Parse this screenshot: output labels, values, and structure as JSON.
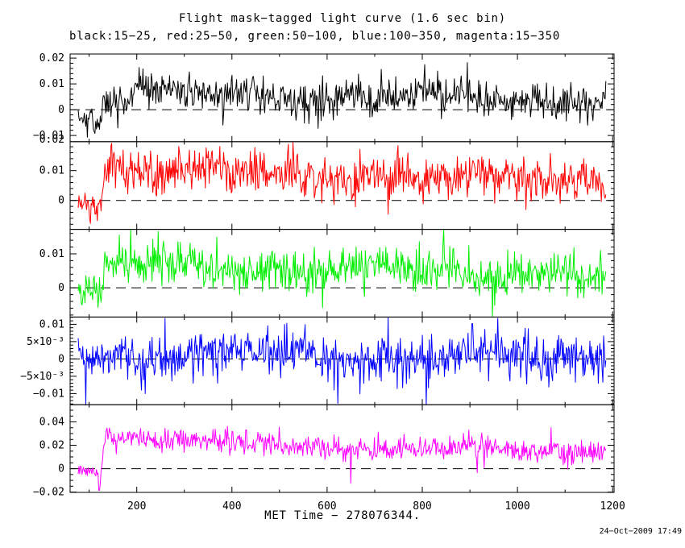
{
  "chart_data": {
    "type": "line",
    "title": "Flight mask−tagged light curve (1.6 sec bin)",
    "subtitle": "black:15−25, red:25−50, green:50−100, blue:100−350, magenta:15−350",
    "xlabel": "MET Time − 278076344.",
    "timestamp": "24−Oct−2009 17:49",
    "background": "#ffffff",
    "axis_color": "#000000",
    "legend_position": "subtitle-top-left",
    "grid": false,
    "x_axis": {
      "range": [
        60,
        1203
      ],
      "major_ticks": [
        200,
        400,
        600,
        800,
        1000,
        1200
      ],
      "tick_labels": [
        "200",
        "400",
        "600",
        "800",
        "1000",
        "1200"
      ],
      "minor_step": 100,
      "data_start": 77,
      "data_end": 1186,
      "bin_sec": 1.6
    },
    "panels": [
      {
        "name": "black",
        "band": "15−25",
        "color": "#000000",
        "y_range": [
          -0.0124,
          0.0216
        ],
        "y_ticks": [
          {
            "v": 0.02,
            "label": "0.02"
          },
          {
            "v": 0.01,
            "label": "0.01"
          },
          {
            "v": 0,
            "label": "0"
          },
          {
            "v": -0.01,
            "label": "−0.01"
          },
          {
            "v": -0.0116,
            "label": "0.02",
            "tick": false
          }
        ],
        "y_minor_step": 0.002,
        "zero_dashed_line": true,
        "trigger_t": 130,
        "sigma_pre": 0.0022,
        "sigma_post": 0.0034,
        "envelope": [
          [
            77,
            -0.001
          ],
          [
            100,
            -0.003
          ],
          [
            113,
            -0.006
          ],
          [
            124,
            -0.003
          ],
          [
            131,
            0.0045
          ],
          [
            180,
            0.0058
          ],
          [
            400,
            0.0054
          ],
          [
            700,
            0.005
          ],
          [
            1000,
            0.0046
          ],
          [
            1186,
            0.004
          ]
        ],
        "events": [
          [
            110,
            -0.0085
          ],
          [
            116,
            -0.0075
          ]
        ]
      },
      {
        "name": "red",
        "band": "25−50",
        "color": "#ff0000",
        "y_range": [
          -0.0097,
          0.0197
        ],
        "y_ticks": [
          {
            "v": 0.01,
            "label": "0.01"
          },
          {
            "v": 0,
            "label": "0"
          }
        ],
        "y_minor_step": 0.002,
        "zero_dashed_line": true,
        "trigger_t": 130,
        "sigma_pre": 0.0021,
        "sigma_post": 0.0036,
        "envelope": [
          [
            77,
            -0.0005
          ],
          [
            110,
            -0.0015
          ],
          [
            122,
            -0.002
          ],
          [
            129,
            0.001
          ],
          [
            137,
            0.0115
          ],
          [
            180,
            0.0108
          ],
          [
            350,
            0.0095
          ],
          [
            600,
            0.0085
          ],
          [
            850,
            0.0075
          ],
          [
            1100,
            0.0068
          ],
          [
            1186,
            0.0065
          ]
        ],
        "events": [
          [
            117,
            -0.0068
          ]
        ]
      },
      {
        "name": "green",
        "band": "50−100",
        "color": "#00ee00",
        "y_range": [
          -0.0086,
          0.0172
        ],
        "y_ticks": [
          {
            "v": 0.01,
            "label": "0.01"
          },
          {
            "v": 0,
            "label": "0"
          }
        ],
        "y_minor_step": 0.002,
        "zero_dashed_line": true,
        "trigger_t": 130,
        "sigma_pre": 0.0021,
        "sigma_post": 0.0032,
        "envelope": [
          [
            77,
            0
          ],
          [
            112,
            -0.0015
          ],
          [
            126,
            -0.0005
          ],
          [
            134,
            0.0068
          ],
          [
            250,
            0.006
          ],
          [
            500,
            0.0055
          ],
          [
            800,
            0.005
          ],
          [
            1186,
            0.0043
          ]
        ],
        "events": [
          [
            118,
            -0.0058
          ]
        ]
      },
      {
        "name": "blue",
        "band": "100−350",
        "color": "#0000ff",
        "y_range": [
          -0.0132,
          0.0121
        ],
        "y_ticks": [
          {
            "v": 0.01,
            "label": "0.01"
          },
          {
            "v": 0.005,
            "label": "5×10⁻³"
          },
          {
            "v": 0,
            "label": "0"
          },
          {
            "v": -0.005,
            "label": "−5×10⁻³"
          },
          {
            "v": -0.01,
            "label": "−0.01"
          }
        ],
        "y_minor_step": 0.001,
        "zero_dashed_line": true,
        "trigger_t": 130,
        "sigma_pre": 0.0031,
        "sigma_post": 0.0031,
        "envelope": [
          [
            77,
            0.0012
          ],
          [
            400,
            0.0008
          ],
          [
            1186,
            0.0004
          ]
        ],
        "events": [
          [
            623,
            -0.0128
          ],
          [
            905,
            0.0102
          ]
        ]
      },
      {
        "name": "magenta",
        "band": "15−350",
        "color": "#ff00ff",
        "y_range": [
          -0.0203,
          0.0547
        ],
        "y_ticks": [
          {
            "v": 0.04,
            "label": "0.04"
          },
          {
            "v": 0.02,
            "label": "0.02"
          },
          {
            "v": 0,
            "label": "0"
          },
          {
            "v": -0.02,
            "label": "−0.02"
          }
        ],
        "y_minor_step": 0.005,
        "zero_dashed_line": true,
        "trigger_t": 130,
        "sigma_pre": 0.003,
        "sigma_post": 0.005,
        "envelope": [
          [
            77,
            -0.001
          ],
          [
            115,
            -0.002
          ],
          [
            126,
            -0.001
          ],
          [
            134,
            0.0295
          ],
          [
            200,
            0.027
          ],
          [
            350,
            0.023
          ],
          [
            550,
            0.019
          ],
          [
            800,
            0.0165
          ],
          [
            1000,
            0.0155
          ],
          [
            1186,
            0.0125
          ]
        ],
        "events": [
          [
            121,
            -0.0185
          ],
          [
            124,
            -0.013
          ],
          [
            650,
            -0.0125
          ]
        ]
      }
    ]
  }
}
